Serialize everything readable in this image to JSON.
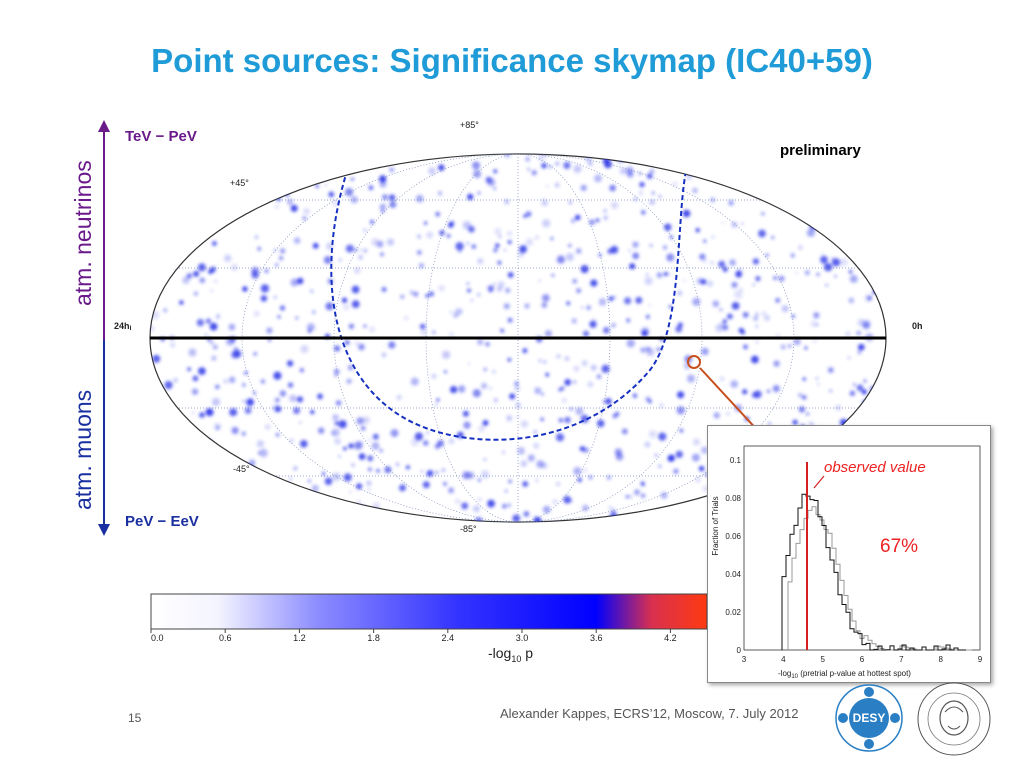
{
  "slide": {
    "title": "Point sources: Significance skymap (IC40+59)",
    "preliminary": "preliminary",
    "footer": "Alexander Kappes, ECRS’12, Moscow, 7. July 2012",
    "page_number": "15"
  },
  "side_labels": {
    "upper": "atm. neutrinos",
    "lower": "atm. muons",
    "upper_energy": "TeV − PeV",
    "lower_energy": "PeV − EeV"
  },
  "skymap": {
    "lat_labels": [
      "+85°",
      "+45°",
      "-45°",
      "-85°"
    ],
    "ra_left": "24h",
    "ra_right": "0h"
  },
  "colorbar": {
    "ticks": [
      "0.0",
      "0.6",
      "1.2",
      "1.8",
      "2.4",
      "3.0",
      "3.6",
      "4.2"
    ],
    "label_main": "-log",
    "label_sub": "10",
    "label_tail": " p"
  },
  "inset": {
    "ylabel": "Fraction of Trials",
    "annotation": "observed value",
    "percentage": "67%",
    "xlabel_main": "-log",
    "xlabel_sub": "10",
    "xlabel_tail": "  (pretrial p-value at hottest spot)",
    "yticks": [
      "0",
      "0.02",
      "0.04",
      "0.06",
      "0.08",
      "0.1"
    ],
    "xticks": [
      "3",
      "4",
      "5",
      "6",
      "7",
      "8",
      "9"
    ]
  },
  "colors": {
    "title": "#1f9bd7",
    "upper_arrow": "#6a1a8a",
    "lower_arrow": "#1a2fa0",
    "accent_red": "#e22222"
  },
  "logos": {
    "desy_text": "DESY"
  }
}
